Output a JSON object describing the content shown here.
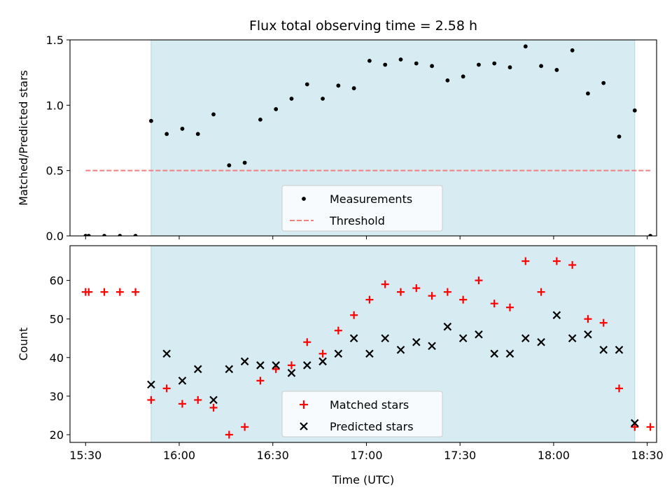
{
  "chart_data": [
    {
      "type": "scatter",
      "title": "Flux total observing time = 2.58 h",
      "xlabel": "",
      "ylabel": "Matched/Predicted stars",
      "xlim": [
        "15:25",
        "18:33"
      ],
      "ylim": [
        0,
        1.5
      ],
      "yticks": [
        0.0,
        0.5,
        1.0,
        1.5
      ],
      "ytick_labels": [
        "0.0",
        "0.5",
        "1.0",
        "1.5"
      ],
      "shaded_region": [
        "15:51",
        "18:26"
      ],
      "legend": {
        "position": "bottom-center",
        "entries": [
          "Measurements",
          "Threshold"
        ]
      },
      "series": [
        {
          "name": "Measurements",
          "marker": "dot",
          "color": "#000000",
          "x": [
            "15:30",
            "15:31",
            "15:36",
            "15:41",
            "15:46",
            "15:51",
            "15:56",
            "16:01",
            "16:06",
            "16:11",
            "16:16",
            "16:21",
            "16:26",
            "16:31",
            "16:36",
            "16:41",
            "16:46",
            "16:51",
            "16:56",
            "17:01",
            "17:06",
            "17:11",
            "17:16",
            "17:21",
            "17:26",
            "17:31",
            "17:36",
            "17:41",
            "17:46",
            "17:51",
            "17:56",
            "18:01",
            "18:06",
            "18:11",
            "18:16",
            "18:21",
            "18:26",
            "18:31"
          ],
          "y": [
            0,
            0,
            0,
            0,
            0,
            0.88,
            0.78,
            0.82,
            0.78,
            0.93,
            0.54,
            0.56,
            0.89,
            0.97,
            1.05,
            1.16,
            1.05,
            1.15,
            1.13,
            1.34,
            1.31,
            1.35,
            1.32,
            1.3,
            1.19,
            1.22,
            1.31,
            1.32,
            1.29,
            1.45,
            1.3,
            1.27,
            1.42,
            1.09,
            1.17,
            0.76,
            0.96,
            0
          ]
        },
        {
          "name": "Threshold",
          "style": "dashed",
          "color": "#f08080",
          "x": [
            "15:30",
            "18:31"
          ],
          "y": [
            0.5,
            0.5
          ]
        }
      ]
    },
    {
      "type": "scatter",
      "title": "",
      "xlabel": "Time (UTC)",
      "ylabel": "Count",
      "xlim": [
        "15:25",
        "18:33"
      ],
      "ylim": [
        18,
        69
      ],
      "yticks": [
        20,
        30,
        40,
        50,
        60
      ],
      "xticks": [
        "15:30",
        "16:00",
        "16:30",
        "17:00",
        "17:30",
        "18:00",
        "18:30"
      ],
      "shaded_region": [
        "15:51",
        "18:26"
      ],
      "legend": {
        "position": "bottom-center",
        "entries": [
          "Matched stars",
          "Predicted stars"
        ]
      },
      "series": [
        {
          "name": "Matched stars",
          "marker": "plus",
          "color": "#ff0000",
          "x": [
            "15:30",
            "15:31",
            "15:36",
            "15:41",
            "15:46",
            "15:51",
            "15:56",
            "16:01",
            "16:06",
            "16:11",
            "16:16",
            "16:21",
            "16:26",
            "16:31",
            "16:36",
            "16:41",
            "16:46",
            "16:51",
            "16:56",
            "17:01",
            "17:06",
            "17:11",
            "17:16",
            "17:21",
            "17:26",
            "17:31",
            "17:36",
            "17:41",
            "17:46",
            "17:51",
            "17:56",
            "18:01",
            "18:06",
            "18:11",
            "18:16",
            "18:21",
            "18:26",
            "18:31"
          ],
          "y": [
            57,
            57,
            57,
            57,
            57,
            29,
            32,
            28,
            29,
            27,
            20,
            22,
            34,
            37,
            38,
            44,
            41,
            47,
            51,
            55,
            59,
            57,
            58,
            56,
            57,
            55,
            60,
            54,
            53,
            65,
            57,
            65,
            64,
            50,
            49,
            32,
            22,
            22
          ]
        },
        {
          "name": "Predicted stars",
          "marker": "x",
          "color": "#000000",
          "x": [
            "15:51",
            "15:56",
            "16:01",
            "16:06",
            "16:11",
            "16:16",
            "16:21",
            "16:26",
            "16:31",
            "16:36",
            "16:41",
            "16:46",
            "16:51",
            "16:56",
            "17:01",
            "17:06",
            "17:11",
            "17:16",
            "17:21",
            "17:26",
            "17:31",
            "17:36",
            "17:41",
            "17:46",
            "17:51",
            "17:56",
            "18:01",
            "18:06",
            "18:11",
            "18:16",
            "18:21",
            "18:26"
          ],
          "y": [
            33,
            41,
            34,
            37,
            29,
            37,
            39,
            38,
            38,
            36,
            38,
            39,
            41,
            45,
            41,
            45,
            42,
            44,
            43,
            48,
            45,
            46,
            41,
            41,
            45,
            44,
            51,
            45,
            46,
            42,
            42,
            23
          ]
        }
      ]
    }
  ],
  "colors": {
    "shade": "#add8e6",
    "threshold": "#f08080",
    "matched": "#ff0000",
    "predicted": "#000000",
    "measurement": "#000000"
  }
}
